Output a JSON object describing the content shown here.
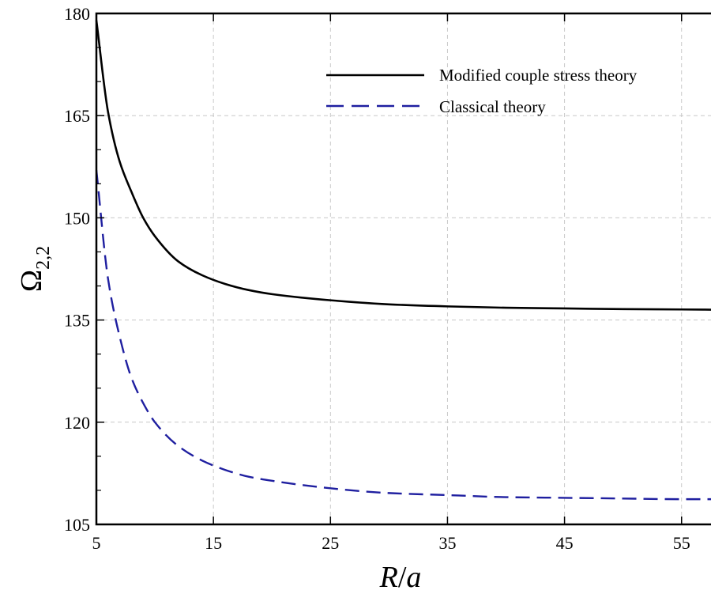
{
  "chart_data": {
    "type": "line",
    "xlabel_main": "R",
    "xlabel_sep": "/",
    "xlabel_var": "a",
    "ylabel_main": "Ω",
    "ylabel_sub": "2,2",
    "xlim": [
      5,
      59
    ],
    "ylim": [
      105,
      180
    ],
    "x_ticks": [
      5,
      15,
      25,
      35,
      45,
      55
    ],
    "y_ticks": [
      105,
      120,
      135,
      150,
      165,
      180
    ],
    "grid": true,
    "legend_position": "top-right",
    "series": [
      {
        "name": "Modified couple stress theory",
        "color": "#000000",
        "style": "solid",
        "x": [
          5,
          6,
          7,
          8,
          9,
          10,
          12,
          14,
          16,
          18,
          20,
          25,
          30,
          35,
          40,
          45,
          50,
          55,
          59
        ],
        "y": [
          179.0,
          165.5,
          158.2,
          153.8,
          150.0,
          147.3,
          143.6,
          141.6,
          140.3,
          139.4,
          138.8,
          137.9,
          137.3,
          137.0,
          136.8,
          136.7,
          136.6,
          136.55,
          136.5
        ]
      },
      {
        "name": "Classical theory",
        "color": "#1f1fa0",
        "style": "dashed",
        "x": [
          5,
          6,
          7,
          8,
          9,
          10,
          12,
          14,
          16,
          18,
          20,
          25,
          30,
          35,
          40,
          45,
          50,
          55,
          59
        ],
        "y": [
          157.0,
          141.0,
          132.5,
          126.5,
          122.8,
          120.0,
          116.5,
          114.4,
          113.0,
          112.0,
          111.4,
          110.3,
          109.6,
          109.3,
          109.0,
          108.9,
          108.8,
          108.7,
          108.7
        ]
      }
    ]
  }
}
